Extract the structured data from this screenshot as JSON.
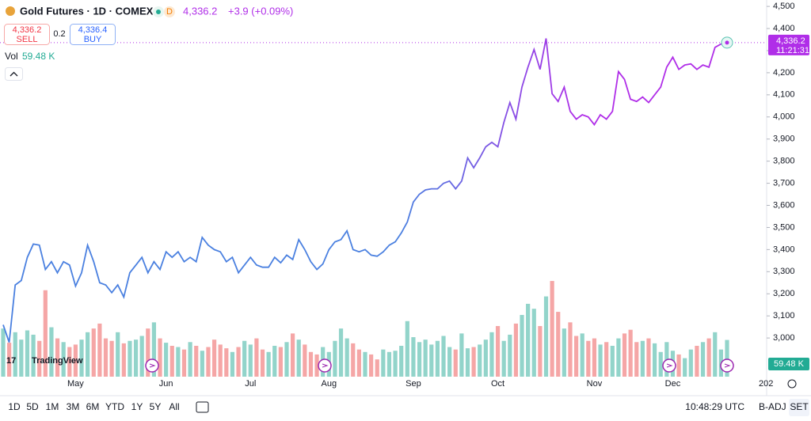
{
  "header": {
    "symbol": "Gold Futures · 1D · COMEX",
    "badge": "D",
    "price": "4,336.2",
    "change": "+3.9 (+0.09%)"
  },
  "sell": {
    "price": "4,336.2",
    "label": "SELL"
  },
  "spread": "0.2",
  "buy": {
    "price": "4,336.4",
    "label": "BUY"
  },
  "vol": {
    "label": "Vol",
    "value": "59.48 K"
  },
  "logo": "TradingView",
  "price_tag": {
    "price": "4,336.2",
    "time": "11:21:31"
  },
  "vol_tag": "59.48 K",
  "year_label": "202",
  "toolbar": {
    "ranges": [
      "1D",
      "5D",
      "1M",
      "3M",
      "6M",
      "YTD",
      "1Y",
      "5Y",
      "All"
    ],
    "clock": "10:48:29 UTC",
    "adj": "B-ADJ",
    "session": "SET"
  },
  "chart_data": [
    {
      "type": "line",
      "categories": [
        null,
        null,
        null,
        null,
        null,
        null,
        null,
        null,
        null,
        null,
        null,
        null,
        "May",
        null,
        null,
        null,
        null,
        null,
        null,
        null,
        null,
        null,
        null,
        null,
        null,
        null,
        null,
        "Jun",
        null,
        null,
        null,
        null,
        null,
        null,
        null,
        null,
        null,
        null,
        null,
        null,
        null,
        "Jul",
        null,
        null,
        null,
        null,
        null,
        null,
        null,
        null,
        null,
        null,
        null,
        null,
        "Aug",
        null,
        null,
        null,
        null,
        null,
        null,
        null,
        null,
        null,
        null,
        null,
        null,
        null,
        "Sep",
        null,
        null,
        null,
        null,
        null,
        null,
        null,
        null,
        null,
        null,
        null,
        null,
        null,
        "Oct",
        null,
        null,
        null,
        null,
        null,
        null,
        null,
        null,
        null,
        null,
        null,
        null,
        null,
        null,
        null,
        "Nov",
        null,
        null,
        null,
        null,
        null,
        null,
        null,
        null,
        null,
        null,
        null,
        null,
        "Dec",
        null,
        null,
        null,
        null,
        null,
        null,
        null,
        null,
        null
      ],
      "values": [
        3060,
        2980,
        3240,
        3260,
        3365,
        3425,
        3420,
        3310,
        3345,
        3295,
        3345,
        3330,
        3235,
        3295,
        3420,
        3345,
        3250,
        3240,
        3205,
        3240,
        3185,
        3295,
        3330,
        3365,
        3295,
        3345,
        3310,
        3390,
        3365,
        3390,
        3345,
        3365,
        3345,
        3455,
        3420,
        3400,
        3390,
        3345,
        3365,
        3295,
        3330,
        3365,
        3330,
        3320,
        3320,
        3365,
        3340,
        3375,
        3355,
        3445,
        3400,
        3345,
        3310,
        3335,
        3400,
        3435,
        3445,
        3485,
        3400,
        3390,
        3400,
        3375,
        3370,
        3390,
        3420,
        3435,
        3475,
        3525,
        3615,
        3650,
        3670,
        3675,
        3675,
        3700,
        3710,
        3675,
        3710,
        3815,
        3770,
        3815,
        3865,
        3885,
        3865,
        3975,
        4065,
        3990,
        4135,
        4225,
        4305,
        4215,
        4355,
        4105,
        4070,
        4135,
        4025,
        3990,
        4010,
        4000,
        3965,
        4010,
        3990,
        4025,
        4205,
        4170,
        4080,
        4070,
        4090,
        4065,
        4100,
        4135,
        4225,
        4270,
        4215,
        4235,
        4240,
        4215,
        4235,
        4225,
        4315,
        4330,
        4336.2
      ],
      "colors": [
        "#4a80e0",
        "#b02ee8"
      ],
      "ylim": [
        2825,
        4529
      ],
      "yticks": [
        {
          "value": 3000,
          "label": "3,000"
        },
        {
          "value": 3100,
          "label": "3,100"
        },
        {
          "value": 3200,
          "label": "3,200"
        },
        {
          "value": 3300,
          "label": "3,300"
        },
        {
          "value": 3400,
          "label": "3,400"
        },
        {
          "value": 3500,
          "label": "3,500"
        },
        {
          "value": 3600,
          "label": "3,600"
        },
        {
          "value": 3700,
          "label": "3,700"
        },
        {
          "value": 3800,
          "label": "3,800"
        },
        {
          "value": 3900,
          "label": "3,900"
        },
        {
          "value": 4000,
          "label": "4,000"
        },
        {
          "value": 4100,
          "label": "4,100"
        },
        {
          "value": 4200,
          "label": "4,200"
        },
        {
          "value": 4300,
          "label": "4,300"
        },
        {
          "value": 4400,
          "label": "4,400"
        },
        {
          "value": 4500,
          "label": "4,500"
        }
      ],
      "grid": false
    },
    {
      "type": "bar",
      "values": [
        78,
        55,
        72,
        60,
        75,
        68,
        58,
        140,
        80,
        62,
        56,
        48,
        52,
        60,
        72,
        78,
        86,
        62,
        58,
        72,
        54,
        58,
        60,
        66,
        78,
        88,
        62,
        55,
        50,
        48,
        44,
        56,
        50,
        42,
        48,
        60,
        52,
        46,
        40,
        48,
        58,
        52,
        62,
        44,
        40,
        50,
        48,
        56,
        70,
        60,
        52,
        40,
        36,
        48,
        40,
        58,
        78,
        62,
        54,
        44,
        40,
        36,
        28,
        44,
        40,
        42,
        50,
        90,
        64,
        56,
        60,
        52,
        58,
        66,
        48,
        44,
        70,
        46,
        48,
        52,
        60,
        72,
        82,
        58,
        68,
        86,
        100,
        118,
        110,
        82,
        130,
        155,
        105,
        78,
        88,
        66,
        70,
        58,
        62,
        52,
        56,
        50,
        62,
        70,
        76,
        56,
        58,
        62,
        54,
        40,
        56,
        42,
        36,
        30,
        44,
        50,
        56,
        62,
        72,
        44,
        59.48
      ],
      "up_color": "#92d4ca",
      "down_color": "#f5a6a6",
      "ylim": [
        0,
        610
      ]
    }
  ]
}
